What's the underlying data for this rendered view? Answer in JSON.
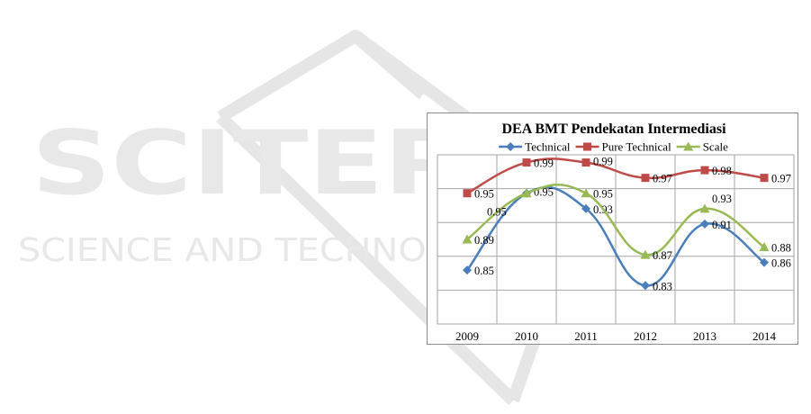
{
  "watermark": {
    "line1": "SCITEPRESS",
    "line2": "SCIENCE AND TECHNOLOGY PUBLICATIONS",
    "color": "#e3e3e3"
  },
  "chart_data": {
    "type": "line",
    "title": "DEA BMT Pendekatan Intermediasi",
    "categories": [
      "2009",
      "2010",
      "2011",
      "2012",
      "2013",
      "2014"
    ],
    "ylim": [
      0.78,
      1.0
    ],
    "grid": true,
    "legend_position": "top",
    "series": [
      {
        "name": "Technical",
        "color": "#4a7ebb",
        "marker": "diamond",
        "values": [
          0.85,
          0.95,
          0.93,
          0.83,
          0.91,
          0.86
        ],
        "labels": [
          "0.85",
          "0.95",
          "0.93",
          "0.83",
          "0.91",
          "0.86"
        ]
      },
      {
        "name": "Pure Technical",
        "color": "#be4b48",
        "marker": "square",
        "values": [
          0.95,
          0.99,
          0.99,
          0.97,
          0.98,
          0.97
        ],
        "labels": [
          "0.95",
          "0.99",
          "0.99",
          "0.97",
          "0.98",
          "0.97"
        ]
      },
      {
        "name": "Scale",
        "color": "#98b954",
        "marker": "triangle",
        "values": [
          0.89,
          0.95,
          0.95,
          0.87,
          0.93,
          0.88
        ],
        "labels": [
          "0.89",
          "0.95",
          "0.95",
          "0.87",
          "0.93",
          "0.88"
        ]
      }
    ]
  }
}
